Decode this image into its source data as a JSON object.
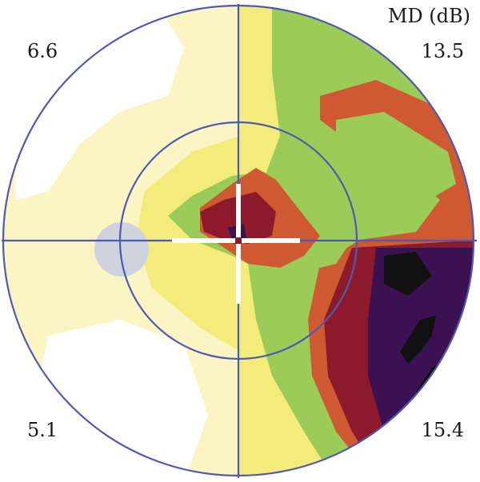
{
  "colors": {
    "white": "#ffffff",
    "pale_yellow": "#fbf5c4",
    "yellow": "#f3ec7a",
    "green": "#9ccc58",
    "orange_red": "#cf5a32",
    "dark_red": "#8c1a2a",
    "purple": "#3b1152",
    "black": "#111111",
    "grid_line": "#4f59b5",
    "blind_spot": "#cfd3dd"
  },
  "labels": {
    "unit": "MD (dB)",
    "upper_left": "6.6",
    "upper_right": "13.5",
    "lower_left": "5.1",
    "lower_right": "15.4"
  },
  "quadrant_md": [
    {
      "quadrant": "upper-left",
      "value": 6.6
    },
    {
      "quadrant": "upper-right",
      "value": 13.5
    },
    {
      "quadrant": "lower-left",
      "value": 5.1
    },
    {
      "quadrant": "lower-right",
      "value": 15.4
    }
  ]
}
